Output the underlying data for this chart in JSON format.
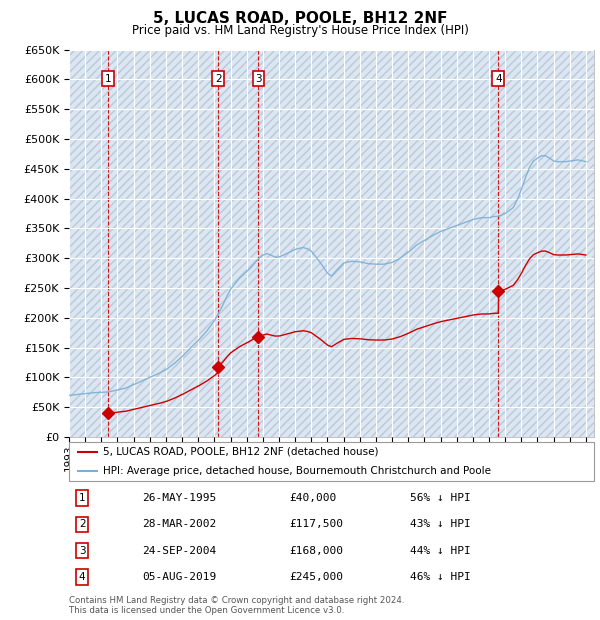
{
  "title": "5, LUCAS ROAD, POOLE, BH12 2NF",
  "subtitle": "Price paid vs. HM Land Registry's House Price Index (HPI)",
  "ylim": [
    0,
    650000
  ],
  "yticks": [
    0,
    50000,
    100000,
    150000,
    200000,
    250000,
    300000,
    350000,
    400000,
    450000,
    500000,
    550000,
    600000,
    650000
  ],
  "xlim_start": 1993.0,
  "xlim_end": 2025.5,
  "background_color": "#ffffff",
  "plot_bg_color": "#dce6f0",
  "grid_color": "#ffffff",
  "hatch_color": "#b8c8dc",
  "sale_points": [
    {
      "label": "1",
      "year": 1995.4,
      "price": 40000
    },
    {
      "label": "2",
      "year": 2002.23,
      "price": 117500
    },
    {
      "label": "3",
      "year": 2004.73,
      "price": 168000
    },
    {
      "label": "4",
      "year": 2019.58,
      "price": 245000
    }
  ],
  "hpi_color": "#7bafd4",
  "sale_color": "#cc0000",
  "vline_color": "#cc0000",
  "box_edge_color": "#cc0000",
  "legend1": "5, LUCAS ROAD, POOLE, BH12 2NF (detached house)",
  "legend2": "HPI: Average price, detached house, Bournemouth Christchurch and Poole",
  "footer1": "Contains HM Land Registry data © Crown copyright and database right 2024.",
  "footer2": "This data is licensed under the Open Government Licence v3.0.",
  "table_rows": [
    [
      "1",
      "26-MAY-1995",
      "£40,000",
      "56% ↓ HPI"
    ],
    [
      "2",
      "28-MAR-2002",
      "£117,500",
      "43% ↓ HPI"
    ],
    [
      "3",
      "24-SEP-2004",
      "£168,000",
      "44% ↓ HPI"
    ],
    [
      "4",
      "05-AUG-2019",
      "£245,000",
      "46% ↓ HPI"
    ]
  ]
}
